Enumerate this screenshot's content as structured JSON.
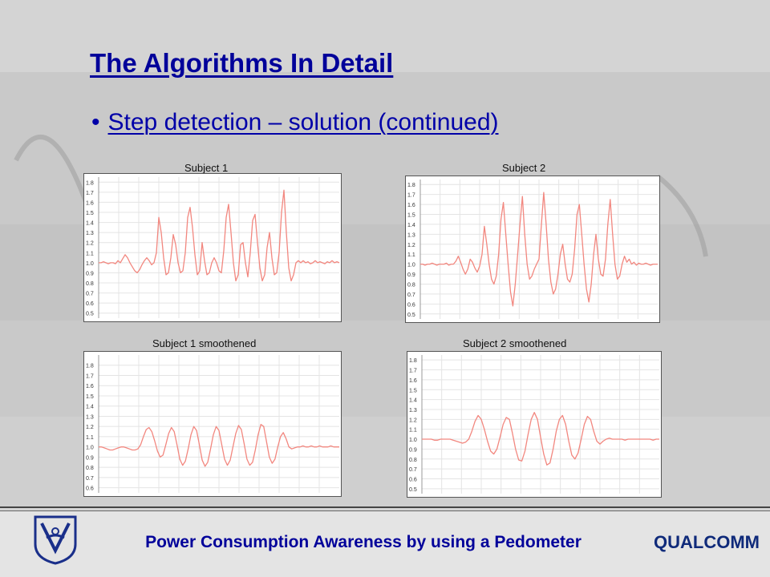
{
  "slide": {
    "title": "The Algorithms In Detail",
    "bullet": "Step detection – solution (continued)",
    "footer": "Power Consumption Awareness by using a Pedometer",
    "logo_right": "QUALCOMM"
  },
  "colors": {
    "title": "#00009a",
    "line": "#f2877f",
    "grid": "#e4e4e4"
  },
  "chart_data": [
    {
      "type": "line",
      "title": "Subject 1",
      "ylim": [
        0.45,
        1.85
      ],
      "yticks": [
        "0.5",
        "0.6",
        "0.7",
        "0.8",
        "0.9",
        "1.0",
        "1.1",
        "1.2",
        "1.3",
        "1.4",
        "1.5",
        "1.6",
        "1.7",
        "1.8"
      ],
      "grid": true,
      "series": [
        {
          "values": [
            1.0,
            1.0,
            1.01,
            1.0,
            0.99,
            1.0,
            1.0,
            0.99,
            1.02,
            1.0,
            1.04,
            1.08,
            1.05,
            1.0,
            0.96,
            0.92,
            0.9,
            0.93,
            0.98,
            1.02,
            1.05,
            1.02,
            0.98,
            1.0,
            1.1,
            1.45,
            1.3,
            1.05,
            0.88,
            0.9,
            1.05,
            1.28,
            1.18,
            1.0,
            0.9,
            0.92,
            1.1,
            1.45,
            1.55,
            1.35,
            1.08,
            0.88,
            0.92,
            1.2,
            1.02,
            0.88,
            0.9,
            1.0,
            1.05,
            1.0,
            0.92,
            0.9,
            1.12,
            1.45,
            1.58,
            1.3,
            1.0,
            0.82,
            0.88,
            1.18,
            1.2,
            1.0,
            0.86,
            1.1,
            1.42,
            1.48,
            1.2,
            0.95,
            0.82,
            0.88,
            1.15,
            1.3,
            1.05,
            0.88,
            0.9,
            1.1,
            1.5,
            1.72,
            1.3,
            0.95,
            0.82,
            0.88,
            1.0,
            1.02,
            1.0,
            1.02,
            1.0,
            1.01,
            0.99,
            1.0,
            1.02,
            1.0,
            1.01,
            1.0,
            0.99,
            1.01,
            1.0,
            1.02,
            1.0,
            1.01,
            1.0
          ]
        }
      ]
    },
    {
      "type": "line",
      "title": "Subject 2",
      "ylim": [
        0.45,
        1.85
      ],
      "yticks": [
        "0.5",
        "0.6",
        "0.7",
        "0.8",
        "0.9",
        "1.0",
        "1.1",
        "1.2",
        "1.3",
        "1.4",
        "1.5",
        "1.6",
        "1.7",
        "1.8"
      ],
      "grid": true,
      "series": [
        {
          "values": [
            1.0,
            1.0,
            0.99,
            1.0,
            1.0,
            1.01,
            1.0,
            0.99,
            1.0,
            1.0,
            1.0,
            1.01,
            0.99,
            1.0,
            1.0,
            1.03,
            1.08,
            1.02,
            0.95,
            0.9,
            0.95,
            1.05,
            1.02,
            0.96,
            0.92,
            0.98,
            1.1,
            1.38,
            1.2,
            1.0,
            0.85,
            0.8,
            0.88,
            1.1,
            1.45,
            1.62,
            1.3,
            1.0,
            0.72,
            0.58,
            0.8,
            1.1,
            1.4,
            1.68,
            1.3,
            1.0,
            0.85,
            0.88,
            0.95,
            1.0,
            1.05,
            1.4,
            1.72,
            1.4,
            1.05,
            0.82,
            0.7,
            0.75,
            0.9,
            1.1,
            1.2,
            1.0,
            0.85,
            0.82,
            0.9,
            1.15,
            1.5,
            1.6,
            1.3,
            1.0,
            0.75,
            0.62,
            0.8,
            1.1,
            1.3,
            1.05,
            0.9,
            0.88,
            1.05,
            1.4,
            1.65,
            1.3,
            1.0,
            0.85,
            0.88,
            1.0,
            1.08,
            1.02,
            1.05,
            1.0,
            1.02,
            0.99,
            1.01,
            1.0,
            1.0,
            1.01,
            1.0,
            0.99,
            1.0,
            1.0,
            1.0
          ]
        }
      ]
    },
    {
      "type": "line",
      "title": "Subject 1 smoothened",
      "ylim": [
        0.55,
        1.9
      ],
      "yticks": [
        "0.6",
        "0.7",
        "0.8",
        "0.9",
        "1.0",
        "1.1",
        "1.2",
        "1.3",
        "1.4",
        "1.5",
        "1.6",
        "1.7",
        "1.8"
      ],
      "grid": true,
      "series": [
        {
          "values": [
            1.0,
            1.0,
            0.99,
            0.98,
            0.97,
            0.97,
            0.98,
            0.99,
            1.0,
            1.0,
            0.99,
            0.98,
            0.97,
            0.97,
            0.98,
            1.02,
            1.1,
            1.17,
            1.19,
            1.15,
            1.06,
            0.96,
            0.9,
            0.92,
            1.02,
            1.13,
            1.19,
            1.15,
            1.02,
            0.88,
            0.82,
            0.86,
            0.98,
            1.12,
            1.2,
            1.16,
            1.02,
            0.87,
            0.81,
            0.85,
            0.98,
            1.12,
            1.2,
            1.16,
            1.02,
            0.88,
            0.82,
            0.87,
            1.0,
            1.13,
            1.21,
            1.17,
            1.03,
            0.88,
            0.82,
            0.85,
            0.97,
            1.12,
            1.22,
            1.2,
            1.05,
            0.9,
            0.84,
            0.88,
            1.0,
            1.1,
            1.14,
            1.08,
            1.0,
            0.98,
            0.99,
            1.0,
            1.0,
            1.01,
            1.0,
            1.0,
            1.01,
            1.0,
            1.0,
            1.01,
            1.0,
            1.0,
            1.0,
            1.01,
            1.0,
            1.0,
            1.0
          ]
        }
      ]
    },
    {
      "type": "line",
      "title": "Subject 2 smoothened",
      "ylim": [
        0.45,
        1.85
      ],
      "yticks": [
        "0.5",
        "0.6",
        "0.7",
        "0.8",
        "0.9",
        "1.0",
        "1.1",
        "1.2",
        "1.3",
        "1.4",
        "1.5",
        "1.6",
        "1.7",
        "1.8"
      ],
      "grid": true,
      "series": [
        {
          "values": [
            1.0,
            1.0,
            1.0,
            1.0,
            0.99,
            0.99,
            1.0,
            1.0,
            1.0,
            1.0,
            0.99,
            0.98,
            0.97,
            0.96,
            0.97,
            1.0,
            1.08,
            1.18,
            1.24,
            1.2,
            1.1,
            0.98,
            0.88,
            0.85,
            0.9,
            1.02,
            1.15,
            1.22,
            1.2,
            1.06,
            0.9,
            0.79,
            0.78,
            0.88,
            1.05,
            1.2,
            1.27,
            1.2,
            1.02,
            0.85,
            0.74,
            0.76,
            0.9,
            1.08,
            1.2,
            1.24,
            1.15,
            0.98,
            0.84,
            0.8,
            0.86,
            1.0,
            1.15,
            1.23,
            1.2,
            1.08,
            0.98,
            0.95,
            0.98,
            1.0,
            1.01,
            1.0,
            1.0,
            1.0,
            1.0,
            0.99,
            1.0,
            1.0,
            1.0,
            1.0,
            1.0,
            1.0,
            1.0,
            1.0,
            0.99,
            1.0,
            1.0
          ]
        }
      ]
    }
  ]
}
